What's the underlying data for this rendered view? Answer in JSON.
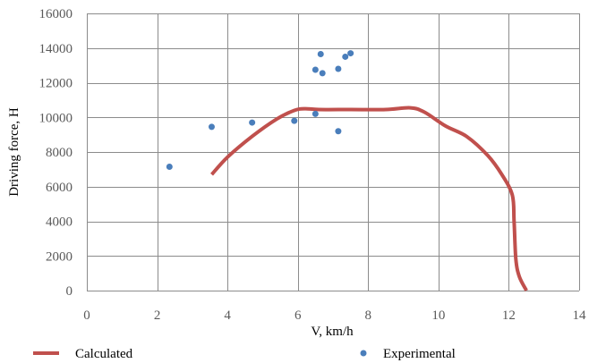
{
  "chart_data": {
    "type": "scatter",
    "xlabel": "V, km/h",
    "ylabel": "Driving force, H",
    "xlim": [
      0,
      14
    ],
    "ylim": [
      0,
      16000
    ],
    "xticks": [
      0,
      2,
      4,
      6,
      8,
      10,
      12,
      14
    ],
    "yticks": [
      0,
      2000,
      4000,
      6000,
      8000,
      10000,
      12000,
      14000,
      16000
    ],
    "grid": true,
    "legend_position": "bottom",
    "series": [
      {
        "name": "Calculated",
        "kind": "line",
        "color": "#c0504d",
        "x": [
          3.55,
          4.0,
          4.7,
          5.4,
          5.9,
          6.2,
          6.6,
          7.5,
          8.5,
          9.2,
          9.6,
          10.2,
          10.8,
          11.4,
          11.8,
          12.1,
          12.15,
          12.2,
          12.3,
          12.5
        ],
        "y": [
          6700,
          7700,
          8900,
          9900,
          10400,
          10500,
          10450,
          10450,
          10450,
          10550,
          10300,
          9500,
          8900,
          7800,
          6700,
          5500,
          4000,
          1800,
          800,
          0
        ]
      },
      {
        "name": "Experimental",
        "kind": "scatter",
        "color": "#4a7ebb",
        "x": [
          2.35,
          3.55,
          4.7,
          5.9,
          6.5,
          6.5,
          6.65,
          6.7,
          7.15,
          7.15,
          7.35,
          7.5
        ],
        "y": [
          7150,
          9450,
          9700,
          9800,
          10200,
          12750,
          13650,
          12550,
          12800,
          9200,
          13500,
          13700
        ]
      }
    ]
  }
}
